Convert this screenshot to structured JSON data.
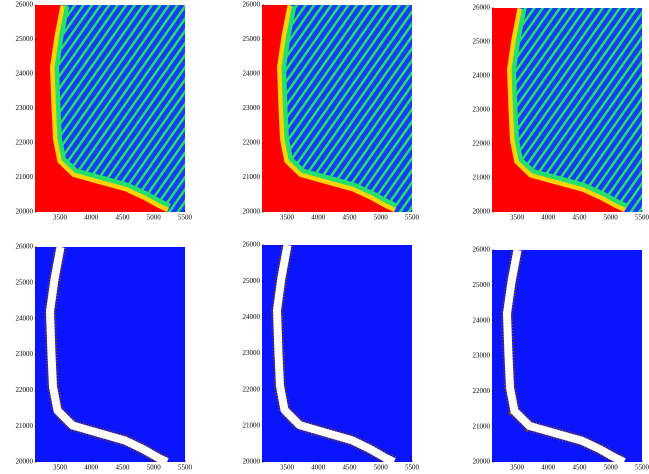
{
  "chart_data": [
    {
      "type": "image",
      "xlim": [
        3100,
        5500
      ],
      "ylim": [
        20000,
        26000
      ],
      "xticks": [
        3500,
        4000,
        4500,
        5000,
        5500
      ],
      "yticks": [
        20000,
        21000,
        22000,
        23000,
        24000,
        25000,
        26000
      ],
      "style": "stripes"
    },
    {
      "type": "image",
      "xlim": [
        3100,
        5500
      ],
      "ylim": [
        20000,
        26000
      ],
      "xticks": [
        3500,
        4000,
        4500,
        5000,
        5500
      ],
      "yticks": [
        20000,
        21000,
        22000,
        23000,
        24000,
        25000,
        26000
      ],
      "style": "stripes"
    },
    {
      "type": "image",
      "xlim": [
        3100,
        5500
      ],
      "ylim": [
        20000,
        26000
      ],
      "xticks": [
        3500,
        4000,
        4500,
        5000,
        5500
      ],
      "yticks": [
        20000,
        21000,
        22000,
        23000,
        24000,
        25000,
        26000
      ],
      "style": "stripes"
    },
    {
      "type": "image",
      "xlim": [
        3100,
        5500
      ],
      "ylim": [
        20000,
        26000
      ],
      "xticks": [
        3500,
        4000,
        4500,
        5000,
        5500
      ],
      "yticks": [
        20000,
        21000,
        22000,
        23000,
        24000,
        25000,
        26000
      ],
      "style": "band"
    },
    {
      "type": "image",
      "xlim": [
        3100,
        5500
      ],
      "ylim": [
        20000,
        26000
      ],
      "xticks": [
        3500,
        4000,
        4500,
        5000,
        5500
      ],
      "yticks": [
        20000,
        21000,
        22000,
        23000,
        24000,
        25000,
        26000
      ],
      "style": "band"
    },
    {
      "type": "image",
      "xlim": [
        3100,
        5500
      ],
      "ylim": [
        20000,
        26000
      ],
      "xticks": [
        3500,
        4000,
        4500,
        5000,
        5500
      ],
      "yticks": [
        20000,
        21000,
        22000,
        23000,
        24000,
        25000,
        26000
      ],
      "style": "band"
    }
  ]
}
